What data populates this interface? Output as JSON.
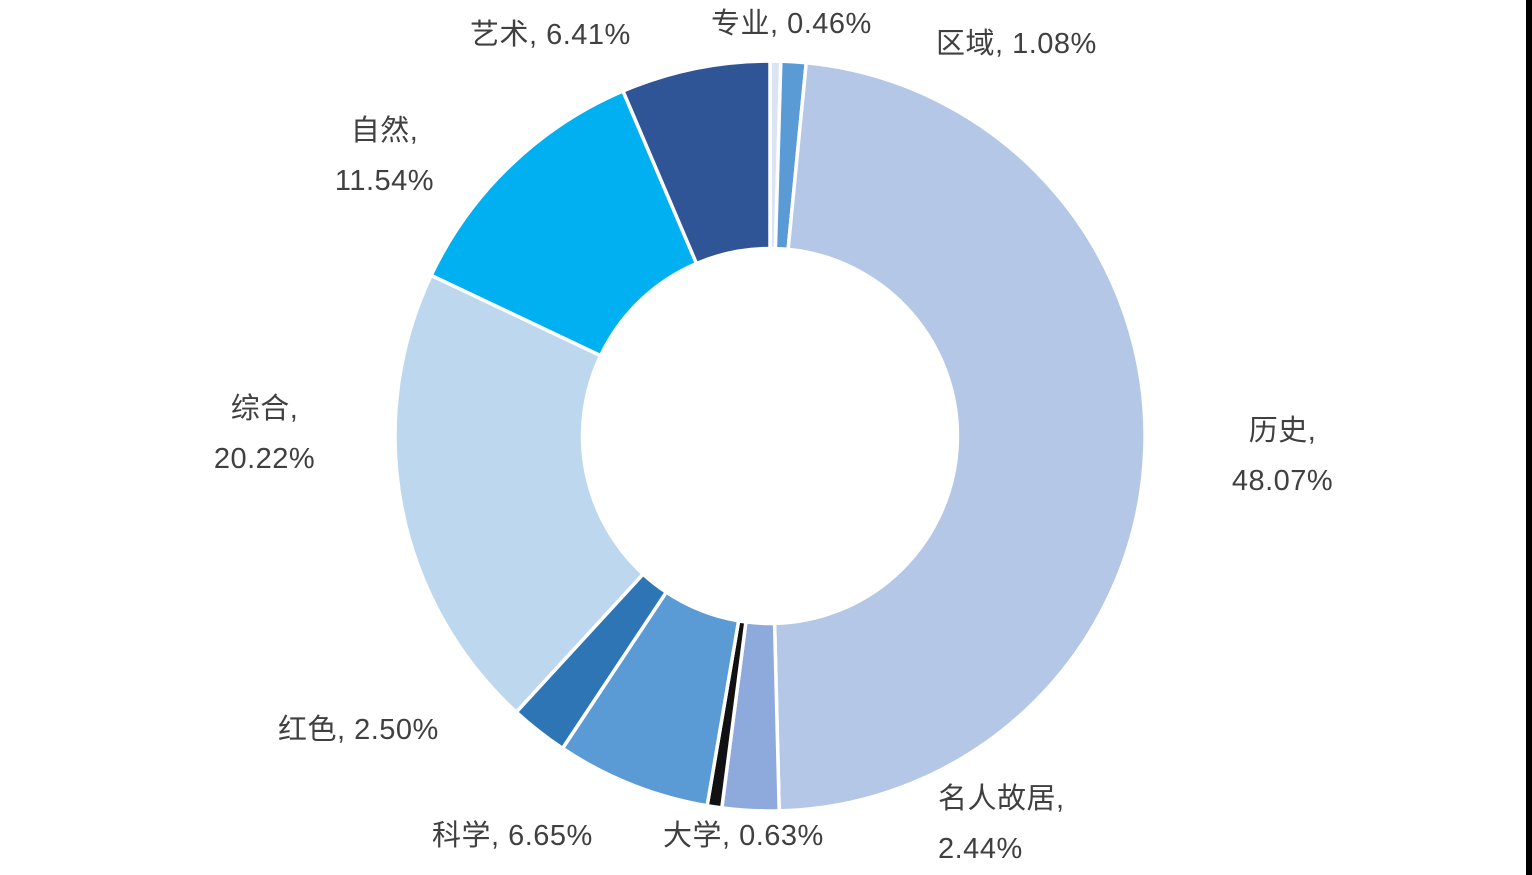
{
  "page": {
    "background_color": "#FFFFFF",
    "right_edge_bar_color": "#000000"
  },
  "chart_data": {
    "type": "pie",
    "subtype": "donut",
    "title": "",
    "legend_position": "none",
    "grid": false,
    "start_angle_deg": 0,
    "direction": "clockwise",
    "inner_radius_ratio": 0.5,
    "slice_border_color": "#FFFFFF",
    "label_color": "#404040",
    "label_format": "category, percent",
    "categories": [
      "专业",
      "区域",
      "历史",
      "名人故居",
      "大学",
      "科学",
      "红色",
      "综合",
      "自然",
      "艺术"
    ],
    "values": [
      0.46,
      1.08,
      48.07,
      2.44,
      0.63,
      6.65,
      2.5,
      20.22,
      11.54,
      6.41
    ],
    "slices": [
      {
        "id": "specialty",
        "name": "专业",
        "value": 0.46,
        "color": "#DCE3F2",
        "label_text": "专业, 0.46%"
      },
      {
        "id": "region",
        "name": "区域",
        "value": 1.08,
        "color": "#5B9BD5",
        "label_text": "区域, 1.08%"
      },
      {
        "id": "history",
        "name": "历史",
        "value": 48.07,
        "color": "#B4C7E7",
        "label_text": "历史,\n48.07%"
      },
      {
        "id": "celebrity-residence",
        "name": "名人故居",
        "value": 2.44,
        "color": "#8EA9DB",
        "label_text": "名人故居,\n2.44%"
      },
      {
        "id": "university",
        "name": "大学",
        "value": 0.63,
        "color": "#111111",
        "label_text": "大学, 0.63%"
      },
      {
        "id": "science",
        "name": "科学",
        "value": 6.65,
        "color": "#5B9BD5",
        "label_text": "科学, 6.65%"
      },
      {
        "id": "red",
        "name": "红色",
        "value": 2.5,
        "color": "#2E75B6",
        "label_text": "红色, 2.50%"
      },
      {
        "id": "comprehensive",
        "name": "综合",
        "value": 20.22,
        "color": "#BDD7EE",
        "label_text": "综合,\n20.22%"
      },
      {
        "id": "nature",
        "name": "自然",
        "value": 11.54,
        "color": "#00B0F0",
        "label_text": "自然,\n11.54%"
      },
      {
        "id": "art",
        "name": "艺术",
        "value": 6.41,
        "color": "#2F5597",
        "label_text": "艺术, 6.41%"
      }
    ]
  }
}
